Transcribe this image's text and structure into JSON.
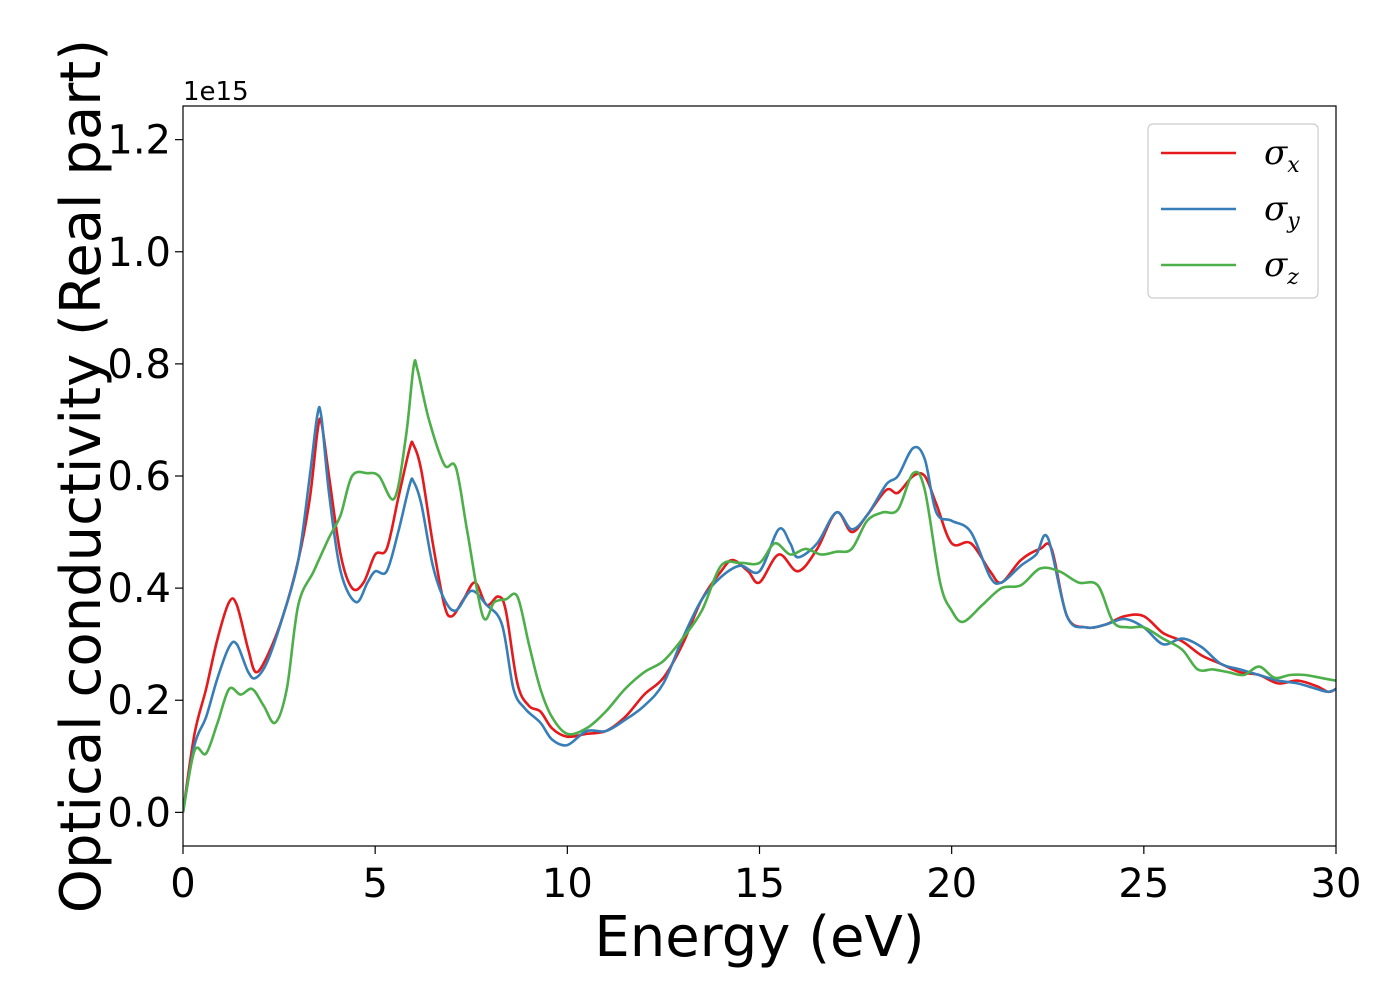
{
  "chart_data": {
    "type": "line",
    "xlabel": "Energy (eV)",
    "ylabel": "Optical conductivity (Real part)",
    "y_offset_text": "1e15",
    "xlim": [
      0,
      30
    ],
    "ylim": [
      -0.06,
      1.26
    ],
    "x_ticks": [
      0,
      5,
      10,
      15,
      20,
      25,
      30
    ],
    "y_ticks": [
      0.0,
      0.2,
      0.4,
      0.6,
      0.8,
      1.0,
      1.2
    ],
    "y_tick_labels": [
      "0.0",
      "0.2",
      "0.4",
      "0.6",
      "0.8",
      "1.0",
      "1.2"
    ],
    "grid": false,
    "legend_position": "top-right",
    "series": [
      {
        "name": "σx",
        "symbol": "σ",
        "subscript": "x",
        "color": "#e41a1c",
        "points": [
          [
            0,
            0
          ],
          [
            0.3,
            0.14
          ],
          [
            0.6,
            0.22
          ],
          [
            0.9,
            0.31
          ],
          [
            1.2,
            0.375
          ],
          [
            1.4,
            0.37
          ],
          [
            1.7,
            0.29
          ],
          [
            1.9,
            0.25
          ],
          [
            2.2,
            0.28
          ],
          [
            2.6,
            0.35
          ],
          [
            3.0,
            0.45
          ],
          [
            3.3,
            0.56
          ],
          [
            3.5,
            0.68
          ],
          [
            3.6,
            0.695
          ],
          [
            3.8,
            0.6
          ],
          [
            4.1,
            0.46
          ],
          [
            4.4,
            0.4
          ],
          [
            4.7,
            0.41
          ],
          [
            5.0,
            0.46
          ],
          [
            5.3,
            0.47
          ],
          [
            5.6,
            0.56
          ],
          [
            5.9,
            0.65
          ],
          [
            6.0,
            0.655
          ],
          [
            6.2,
            0.61
          ],
          [
            6.5,
            0.48
          ],
          [
            6.8,
            0.37
          ],
          [
            7.0,
            0.35
          ],
          [
            7.3,
            0.38
          ],
          [
            7.6,
            0.41
          ],
          [
            7.9,
            0.37
          ],
          [
            8.2,
            0.385
          ],
          [
            8.4,
            0.36
          ],
          [
            8.7,
            0.23
          ],
          [
            9.0,
            0.19
          ],
          [
            9.3,
            0.18
          ],
          [
            9.6,
            0.15
          ],
          [
            10.0,
            0.135
          ],
          [
            10.5,
            0.14
          ],
          [
            11.0,
            0.145
          ],
          [
            11.5,
            0.17
          ],
          [
            12.0,
            0.21
          ],
          [
            12.5,
            0.24
          ],
          [
            13.0,
            0.3
          ],
          [
            13.5,
            0.38
          ],
          [
            14.0,
            0.43
          ],
          [
            14.3,
            0.45
          ],
          [
            14.7,
            0.43
          ],
          [
            15.0,
            0.41
          ],
          [
            15.5,
            0.46
          ],
          [
            16.0,
            0.43
          ],
          [
            16.5,
            0.47
          ],
          [
            17.0,
            0.535
          ],
          [
            17.4,
            0.5
          ],
          [
            17.8,
            0.53
          ],
          [
            18.3,
            0.575
          ],
          [
            18.6,
            0.57
          ],
          [
            19.0,
            0.6
          ],
          [
            19.3,
            0.6
          ],
          [
            19.6,
            0.55
          ],
          [
            20.0,
            0.48
          ],
          [
            20.5,
            0.48
          ],
          [
            21.0,
            0.43
          ],
          [
            21.3,
            0.41
          ],
          [
            21.8,
            0.45
          ],
          [
            22.3,
            0.47
          ],
          [
            22.6,
            0.47
          ],
          [
            23.0,
            0.35
          ],
          [
            23.5,
            0.33
          ],
          [
            24.0,
            0.335
          ],
          [
            24.5,
            0.35
          ],
          [
            25.0,
            0.35
          ],
          [
            25.5,
            0.32
          ],
          [
            26.0,
            0.305
          ],
          [
            26.5,
            0.28
          ],
          [
            27.0,
            0.265
          ],
          [
            27.5,
            0.25
          ],
          [
            28.0,
            0.245
          ],
          [
            28.5,
            0.23
          ],
          [
            29.0,
            0.235
          ],
          [
            29.5,
            0.225
          ],
          [
            29.8,
            0.215
          ],
          [
            30.0,
            0.22
          ]
        ]
      },
      {
        "name": "σy",
        "symbol": "σ",
        "subscript": "y",
        "color": "#377eb8",
        "points": [
          [
            0,
            0
          ],
          [
            0.3,
            0.12
          ],
          [
            0.6,
            0.17
          ],
          [
            0.9,
            0.24
          ],
          [
            1.2,
            0.295
          ],
          [
            1.4,
            0.3
          ],
          [
            1.7,
            0.25
          ],
          [
            1.9,
            0.24
          ],
          [
            2.2,
            0.27
          ],
          [
            2.6,
            0.35
          ],
          [
            3.0,
            0.45
          ],
          [
            3.3,
            0.6
          ],
          [
            3.5,
            0.71
          ],
          [
            3.6,
            0.705
          ],
          [
            3.8,
            0.57
          ],
          [
            4.1,
            0.43
          ],
          [
            4.5,
            0.375
          ],
          [
            4.8,
            0.41
          ],
          [
            5.0,
            0.43
          ],
          [
            5.3,
            0.43
          ],
          [
            5.6,
            0.5
          ],
          [
            5.9,
            0.585
          ],
          [
            6.0,
            0.59
          ],
          [
            6.2,
            0.55
          ],
          [
            6.5,
            0.44
          ],
          [
            6.8,
            0.38
          ],
          [
            7.1,
            0.36
          ],
          [
            7.5,
            0.395
          ],
          [
            7.9,
            0.37
          ],
          [
            8.3,
            0.335
          ],
          [
            8.6,
            0.22
          ],
          [
            8.9,
            0.185
          ],
          [
            9.3,
            0.16
          ],
          [
            9.6,
            0.13
          ],
          [
            10.0,
            0.12
          ],
          [
            10.5,
            0.145
          ],
          [
            11.0,
            0.145
          ],
          [
            11.5,
            0.165
          ],
          [
            12.0,
            0.19
          ],
          [
            12.5,
            0.23
          ],
          [
            13.0,
            0.31
          ],
          [
            13.5,
            0.38
          ],
          [
            14.0,
            0.42
          ],
          [
            14.5,
            0.44
          ],
          [
            15.0,
            0.43
          ],
          [
            15.5,
            0.505
          ],
          [
            15.8,
            0.48
          ],
          [
            16.0,
            0.455
          ],
          [
            16.5,
            0.48
          ],
          [
            17.0,
            0.535
          ],
          [
            17.4,
            0.505
          ],
          [
            17.8,
            0.53
          ],
          [
            18.3,
            0.585
          ],
          [
            18.6,
            0.6
          ],
          [
            19.0,
            0.65
          ],
          [
            19.3,
            0.63
          ],
          [
            19.6,
            0.535
          ],
          [
            20.0,
            0.52
          ],
          [
            20.5,
            0.5
          ],
          [
            21.0,
            0.42
          ],
          [
            21.3,
            0.41
          ],
          [
            21.8,
            0.44
          ],
          [
            22.2,
            0.46
          ],
          [
            22.5,
            0.49
          ],
          [
            23.0,
            0.35
          ],
          [
            23.5,
            0.33
          ],
          [
            24.0,
            0.335
          ],
          [
            24.5,
            0.345
          ],
          [
            25.0,
            0.33
          ],
          [
            25.5,
            0.3
          ],
          [
            26.0,
            0.31
          ],
          [
            26.5,
            0.295
          ],
          [
            27.0,
            0.265
          ],
          [
            27.5,
            0.255
          ],
          [
            28.0,
            0.245
          ],
          [
            28.5,
            0.235
          ],
          [
            29.0,
            0.23
          ],
          [
            29.5,
            0.22
          ],
          [
            29.8,
            0.215
          ],
          [
            30.0,
            0.22
          ]
        ]
      },
      {
        "name": "σz",
        "symbol": "σ",
        "subscript": "z",
        "color": "#4daf4a",
        "points": [
          [
            0,
            0
          ],
          [
            0.3,
            0.11
          ],
          [
            0.6,
            0.105
          ],
          [
            0.9,
            0.16
          ],
          [
            1.2,
            0.22
          ],
          [
            1.5,
            0.21
          ],
          [
            1.8,
            0.22
          ],
          [
            2.1,
            0.19
          ],
          [
            2.4,
            0.16
          ],
          [
            2.7,
            0.22
          ],
          [
            3.0,
            0.37
          ],
          [
            3.4,
            0.43
          ],
          [
            3.8,
            0.49
          ],
          [
            4.1,
            0.53
          ],
          [
            4.4,
            0.6
          ],
          [
            4.8,
            0.605
          ],
          [
            5.1,
            0.6
          ],
          [
            5.5,
            0.56
          ],
          [
            5.8,
            0.67
          ],
          [
            6.0,
            0.795
          ],
          [
            6.1,
            0.79
          ],
          [
            6.4,
            0.7
          ],
          [
            6.8,
            0.62
          ],
          [
            7.1,
            0.615
          ],
          [
            7.4,
            0.5
          ],
          [
            7.8,
            0.35
          ],
          [
            8.1,
            0.375
          ],
          [
            8.4,
            0.38
          ],
          [
            8.7,
            0.385
          ],
          [
            9.0,
            0.3
          ],
          [
            9.3,
            0.22
          ],
          [
            9.6,
            0.17
          ],
          [
            10.0,
            0.14
          ],
          [
            10.5,
            0.15
          ],
          [
            11.0,
            0.18
          ],
          [
            11.5,
            0.22
          ],
          [
            12.0,
            0.25
          ],
          [
            12.5,
            0.27
          ],
          [
            13.0,
            0.31
          ],
          [
            13.5,
            0.36
          ],
          [
            14.0,
            0.44
          ],
          [
            14.5,
            0.445
          ],
          [
            15.0,
            0.445
          ],
          [
            15.4,
            0.48
          ],
          [
            15.8,
            0.46
          ],
          [
            16.2,
            0.47
          ],
          [
            16.6,
            0.46
          ],
          [
            17.0,
            0.465
          ],
          [
            17.4,
            0.47
          ],
          [
            17.8,
            0.52
          ],
          [
            18.2,
            0.535
          ],
          [
            18.6,
            0.54
          ],
          [
            19.0,
            0.605
          ],
          [
            19.3,
            0.575
          ],
          [
            19.7,
            0.41
          ],
          [
            20.0,
            0.36
          ],
          [
            20.3,
            0.34
          ],
          [
            20.8,
            0.37
          ],
          [
            21.3,
            0.4
          ],
          [
            21.8,
            0.405
          ],
          [
            22.3,
            0.435
          ],
          [
            22.8,
            0.43
          ],
          [
            23.3,
            0.41
          ],
          [
            23.8,
            0.405
          ],
          [
            24.2,
            0.34
          ],
          [
            24.6,
            0.33
          ],
          [
            25.0,
            0.33
          ],
          [
            25.5,
            0.31
          ],
          [
            26.0,
            0.29
          ],
          [
            26.4,
            0.255
          ],
          [
            26.8,
            0.255
          ],
          [
            27.2,
            0.25
          ],
          [
            27.6,
            0.245
          ],
          [
            28.0,
            0.26
          ],
          [
            28.4,
            0.24
          ],
          [
            28.8,
            0.245
          ],
          [
            29.2,
            0.245
          ],
          [
            29.6,
            0.24
          ],
          [
            30.0,
            0.235
          ]
        ]
      }
    ]
  }
}
